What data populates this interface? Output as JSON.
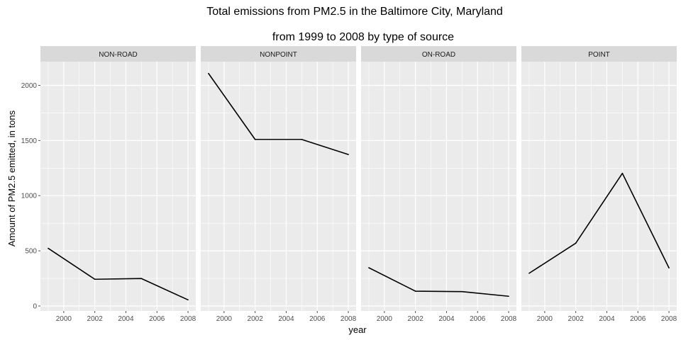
{
  "chart_data": {
    "type": "line",
    "title": [
      "Total emissions from PM2.5 in the Baltimore City, Maryland",
      "from 1999 to 2008 by type of source"
    ],
    "xlabel": "year",
    "ylabel": "Amount of PM2.5 emitted, in tons",
    "x": [
      1999,
      2002,
      2005,
      2008
    ],
    "xlim": [
      1998.5,
      2008.5
    ],
    "ylim": [
      -45,
      2215
    ],
    "x_ticks": [
      2000,
      2002,
      2004,
      2006,
      2008
    ],
    "x_tick_labels": [
      "2000",
      "2002",
      "2004",
      "2006",
      "2008"
    ],
    "y_ticks": [
      0,
      500,
      1000,
      1500,
      2000
    ],
    "y_tick_labels": [
      "0",
      "500",
      "1000",
      "1500",
      "2000"
    ],
    "grid": true,
    "facets": [
      {
        "name": "NON-ROAD",
        "values": [
          522.9,
          242.4,
          248.9,
          55.8
        ]
      },
      {
        "name": "NONPOINT",
        "values": [
          2107.6,
          1509.5,
          1509.5,
          1373.2
        ]
      },
      {
        "name": "ON-ROAD",
        "values": [
          346.8,
          134.3,
          130.4,
          88.3
        ]
      },
      {
        "name": "POINT",
        "values": [
          296.8,
          569.3,
          1202.5,
          344.98
        ]
      }
    ],
    "colors": {
      "panel_bg": "#ebebeb",
      "strip_bg": "#d9d9d9",
      "grid": "#ffffff",
      "line": "#000000",
      "tick": "#4d4d4d"
    }
  }
}
